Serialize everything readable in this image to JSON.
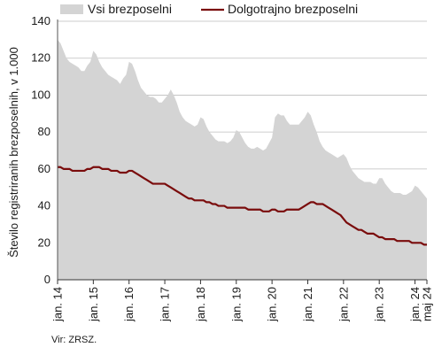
{
  "chart_data": {
    "type": "area",
    "title": "",
    "xlabel": "",
    "ylabel": "Število registriranih brezposelnih, v 1.000",
    "ylim": [
      0,
      140
    ],
    "yticks": [
      0,
      20,
      40,
      60,
      80,
      100,
      120,
      140
    ],
    "grid": true,
    "legend_position": "top",
    "x_tick_labels": [
      "jan. 14",
      "jan. 15",
      "jan. 16",
      "jan. 17",
      "jan. 18",
      "jan. 19",
      "jan. 20",
      "jan. 21",
      "jan. 22",
      "jan. 23",
      "jan. 24",
      "maj 24"
    ],
    "x_start": "jan. 14",
    "series": [
      {
        "name": "Vsi brezposelni",
        "kind": "area",
        "color": "#d4d4d4",
        "values": [
          130,
          128,
          124,
          120,
          118,
          117,
          116,
          115,
          113,
          113,
          116,
          118,
          124,
          122,
          118,
          115,
          113,
          111,
          110,
          109,
          108,
          106,
          109,
          111,
          118,
          117,
          113,
          108,
          104,
          102,
          100,
          99,
          99,
          98,
          96,
          96,
          98,
          100,
          103,
          100,
          96,
          91,
          88,
          86,
          85,
          84,
          83,
          84,
          88,
          87,
          83,
          80,
          78,
          76,
          75,
          75,
          75,
          74,
          75,
          77,
          81,
          80,
          77,
          74,
          72,
          71,
          71,
          72,
          71,
          70,
          71,
          74,
          77,
          88,
          90,
          89,
          89,
          86,
          84,
          84,
          84,
          84,
          86,
          88,
          91,
          89,
          84,
          80,
          75,
          72,
          70,
          69,
          68,
          67,
          66,
          67,
          68,
          66,
          62,
          59,
          57,
          55,
          54,
          53,
          53,
          53,
          52,
          52,
          55,
          55,
          52,
          50,
          48,
          47,
          47,
          47,
          46,
          46,
          47,
          48,
          51,
          50,
          48,
          46,
          44
        ]
      },
      {
        "name": "Dolgotrajno brezposelni",
        "kind": "line",
        "color": "#7a0c0c",
        "values": [
          61,
          61,
          60,
          60,
          60,
          59,
          59,
          59,
          59,
          59,
          60,
          60,
          61,
          61,
          61,
          60,
          60,
          60,
          59,
          59,
          59,
          58,
          58,
          58,
          59,
          59,
          58,
          57,
          56,
          55,
          54,
          53,
          52,
          52,
          52,
          52,
          52,
          51,
          50,
          49,
          48,
          47,
          46,
          45,
          44,
          44,
          43,
          43,
          43,
          43,
          42,
          42,
          41,
          41,
          40,
          40,
          40,
          39,
          39,
          39,
          39,
          39,
          39,
          39,
          38,
          38,
          38,
          38,
          38,
          37,
          37,
          37,
          38,
          38,
          37,
          37,
          37,
          38,
          38,
          38,
          38,
          38,
          39,
          40,
          41,
          42,
          42,
          41,
          41,
          41,
          40,
          39,
          38,
          37,
          36,
          35,
          33,
          31,
          30,
          29,
          28,
          27,
          27,
          26,
          25,
          25,
          25,
          24,
          23,
          23,
          22,
          22,
          22,
          22,
          21,
          21,
          21,
          21,
          21,
          20,
          20,
          20,
          20,
          19,
          19
        ]
      }
    ]
  },
  "source": "Vir: ZRSZ."
}
